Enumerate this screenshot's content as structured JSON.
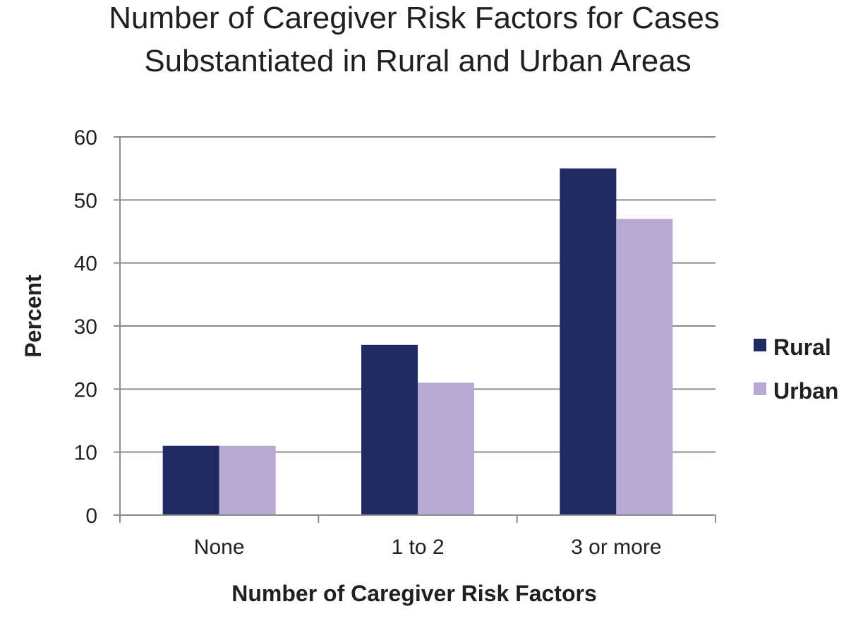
{
  "chart_data": {
    "type": "bar",
    "title": "Number of Caregiver Risk Factors for Cases Substantiated in Rural and Urban Areas",
    "title_lines": [
      "Number of Caregiver Risk Factors for Cases",
      "Substantiated in Rural and Urban Areas"
    ],
    "xlabel": "Number of Caregiver Risk Factors",
    "ylabel": "Percent",
    "categories": [
      "None",
      "1 to 2",
      "3 or more"
    ],
    "series": [
      {
        "name": "Rural",
        "values": [
          11,
          27,
          55
        ],
        "color": "#1f2a63"
      },
      {
        "name": "Urban",
        "values": [
          11,
          21,
          47
        ],
        "color": "#b8a9d3"
      }
    ],
    "ylim": [
      0,
      60
    ],
    "yticks": [
      0,
      10,
      20,
      30,
      40,
      50,
      60
    ],
    "grid": true,
    "legend": "right"
  }
}
